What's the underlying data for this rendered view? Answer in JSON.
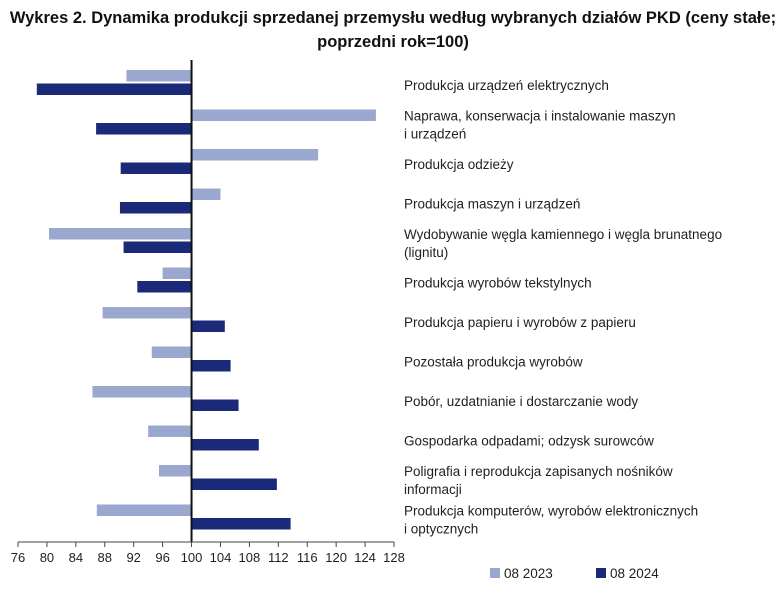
{
  "chart_data": {
    "type": "bar",
    "orientation": "horizontal",
    "title": "Wykres 2. Dynamika produkcji sprzedanej przemysłu według wybranych działów PKD (ceny stałe; poprzedni rok=100)",
    "categories": [
      [
        "Produkcja urządzeń elektrycznych"
      ],
      [
        "Naprawa, konserwacja i instalowanie maszyn",
        "i urządzeń"
      ],
      [
        "Produkcja odzieży"
      ],
      [
        "Produkcja maszyn i urządzeń"
      ],
      [
        "Wydobywanie węgla kamiennego i węgla brunatnego",
        "(lignitu)"
      ],
      [
        "Produkcja wyrobów tekstylnych"
      ],
      [
        "Produkcja papieru i wyrobów z papieru"
      ],
      [
        "Pozostała produkcja wyrobów"
      ],
      [
        "Pobór, uzdatnianie i dostarczanie wody"
      ],
      [
        "Gospodarka odpadami; odzysk surowców"
      ],
      [
        "Poligrafia i reprodukcja zapisanych nośników",
        "informacji"
      ],
      [
        "Produkcja komputerów, wyrobów elektronicznych",
        "i optycznych"
      ]
    ],
    "series": [
      {
        "name": "08 2023",
        "color": "#9aa7cf",
        "values": [
          91.0,
          125.5,
          117.5,
          104.0,
          80.3,
          96.0,
          87.7,
          94.5,
          86.3,
          94.0,
          95.5,
          86.9
        ]
      },
      {
        "name": "08 2024",
        "color": "#1a2a78",
        "values": [
          78.6,
          86.8,
          90.2,
          90.1,
          90.6,
          92.5,
          104.6,
          105.4,
          106.5,
          109.3,
          111.8,
          113.7
        ]
      }
    ],
    "baseline": 100,
    "xlim": [
      76,
      128
    ],
    "xticks": [
      76,
      80,
      84,
      88,
      92,
      96,
      100,
      104,
      108,
      112,
      116,
      120,
      124,
      128
    ],
    "grid": false,
    "legend": "bottom"
  }
}
